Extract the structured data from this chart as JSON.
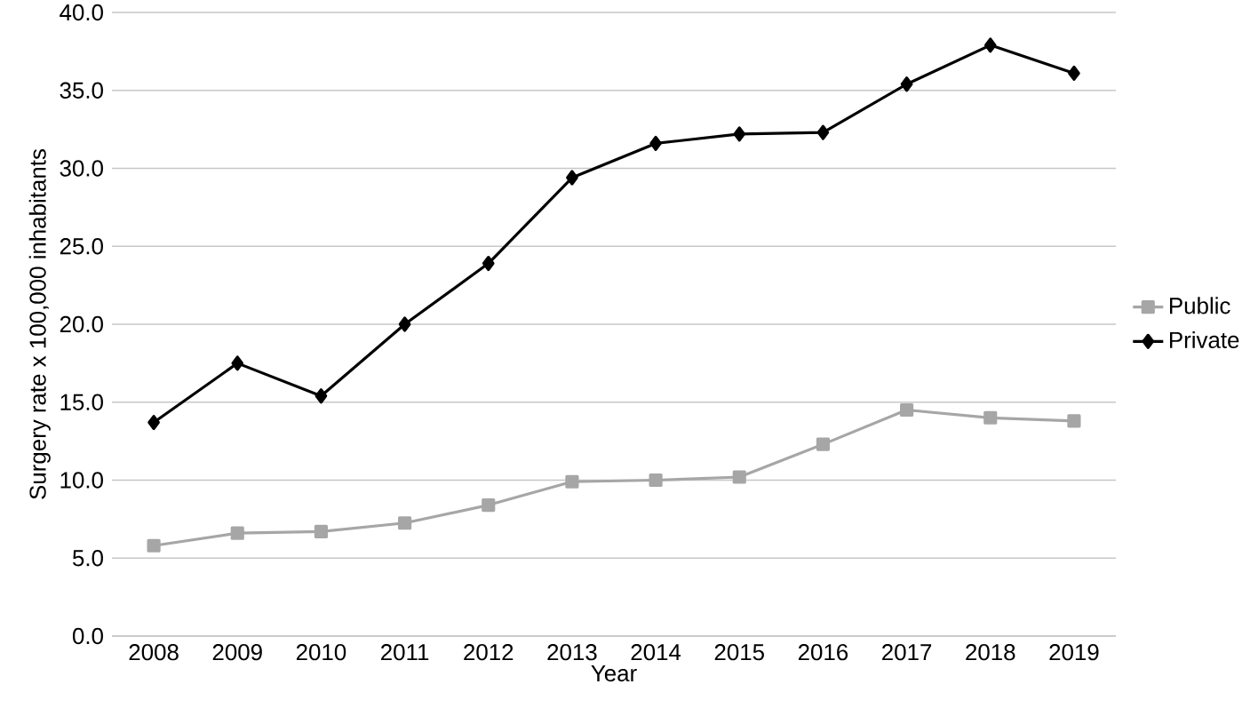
{
  "chart_data": {
    "type": "line",
    "xlabel": "Year",
    "ylabel": "Surgery rate x 100,000 inhabitants",
    "categories": [
      "2008",
      "2009",
      "2010",
      "2011",
      "2012",
      "2013",
      "2014",
      "2015",
      "2016",
      "2017",
      "2018",
      "2019"
    ],
    "series": [
      {
        "name": "Public",
        "color": "#a6a6a6",
        "marker": "square",
        "values": [
          5.8,
          6.6,
          6.7,
          7.25,
          8.4,
          9.9,
          10.0,
          10.2,
          12.3,
          14.5,
          14.0,
          13.8
        ]
      },
      {
        "name": "Private",
        "color": "#000000",
        "marker": "diamond",
        "values": [
          13.7,
          17.5,
          15.4,
          20.0,
          23.9,
          29.4,
          31.6,
          32.2,
          32.3,
          35.4,
          37.9,
          36.1
        ]
      }
    ],
    "ylim": [
      0,
      40
    ],
    "yticks": [
      {
        "value": 0,
        "label": "0.0"
      },
      {
        "value": 5,
        "label": "5.0"
      },
      {
        "value": 10,
        "label": "10.0"
      },
      {
        "value": 15,
        "label": "15.0"
      },
      {
        "value": 20,
        "label": "20.0"
      },
      {
        "value": 25,
        "label": "25.0"
      },
      {
        "value": 30,
        "label": "30.0"
      },
      {
        "value": 35,
        "label": "35.0"
      },
      {
        "value": 40,
        "label": "40.0"
      }
    ],
    "grid": "y",
    "legend": "right",
    "line_style": "solid"
  }
}
